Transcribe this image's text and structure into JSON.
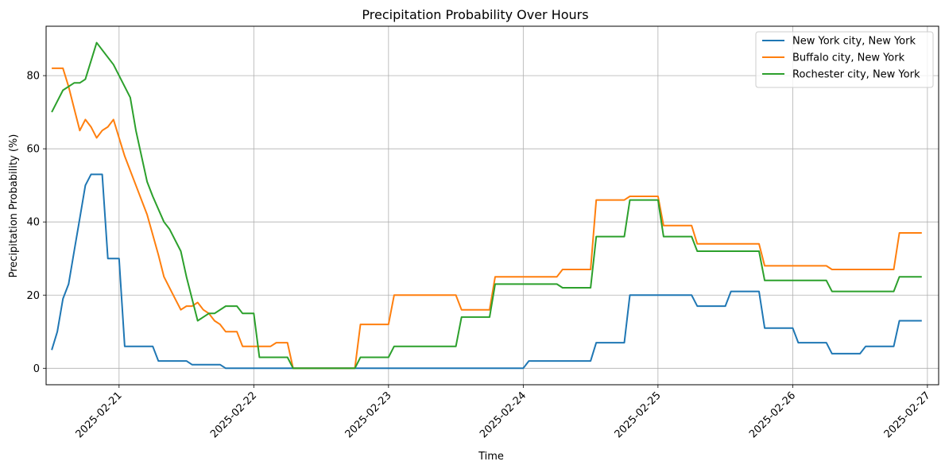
{
  "chart_data": {
    "type": "line",
    "title": "Precipitation Probability Over Hours",
    "xlabel": "Time",
    "ylabel": "Precipitation Probability (%)",
    "x_ticks": [
      "2025-02-21",
      "2025-02-22",
      "2025-02-23",
      "2025-02-24",
      "2025-02-25",
      "2025-02-26",
      "2025-02-27"
    ],
    "y_ticks": [
      0,
      20,
      40,
      60,
      80
    ],
    "xlim": [
      "2025-02-20T11:00",
      "2025-02-27T02:00"
    ],
    "ylim": [
      -4.5,
      93.5
    ],
    "grid": true,
    "legend_position": "top-right",
    "series": [
      {
        "name": "New York city, New York",
        "color": "#1f77b4",
        "points": [
          [
            "2025-02-20T12:00",
            5
          ],
          [
            "2025-02-20T13:00",
            10
          ],
          [
            "2025-02-20T14:00",
            19
          ],
          [
            "2025-02-20T15:00",
            23
          ],
          [
            "2025-02-20T16:00",
            32
          ],
          [
            "2025-02-20T17:00",
            41
          ],
          [
            "2025-02-20T18:00",
            50
          ],
          [
            "2025-02-20T19:00",
            53
          ],
          [
            "2025-02-20T21:00",
            53
          ],
          [
            "2025-02-20T22:00",
            30
          ],
          [
            "2025-02-21T00:00",
            30
          ],
          [
            "2025-02-21T01:00",
            6
          ],
          [
            "2025-02-21T06:00",
            6
          ],
          [
            "2025-02-21T07:00",
            2
          ],
          [
            "2025-02-21T12:00",
            2
          ],
          [
            "2025-02-21T13:00",
            1
          ],
          [
            "2025-02-21T18:00",
            1
          ],
          [
            "2025-02-21T19:00",
            0
          ],
          [
            "2025-02-24T00:00",
            0
          ],
          [
            "2025-02-24T01:00",
            2
          ],
          [
            "2025-02-24T12:00",
            2
          ],
          [
            "2025-02-24T13:00",
            7
          ],
          [
            "2025-02-24T18:00",
            7
          ],
          [
            "2025-02-24T19:00",
            20
          ],
          [
            "2025-02-25T06:00",
            20
          ],
          [
            "2025-02-25T07:00",
            17
          ],
          [
            "2025-02-25T12:00",
            17
          ],
          [
            "2025-02-25T13:00",
            21
          ],
          [
            "2025-02-25T18:00",
            21
          ],
          [
            "2025-02-25T19:00",
            11
          ],
          [
            "2025-02-26T00:00",
            11
          ],
          [
            "2025-02-26T01:00",
            7
          ],
          [
            "2025-02-26T06:00",
            7
          ],
          [
            "2025-02-26T07:00",
            4
          ],
          [
            "2025-02-26T12:00",
            4
          ],
          [
            "2025-02-26T13:00",
            6
          ],
          [
            "2025-02-26T18:00",
            6
          ],
          [
            "2025-02-26T19:00",
            13
          ],
          [
            "2025-02-26T23:00",
            13
          ]
        ]
      },
      {
        "name": "Buffalo city, New York",
        "color": "#ff7f0e",
        "points": [
          [
            "2025-02-20T12:00",
            82
          ],
          [
            "2025-02-20T14:00",
            82
          ],
          [
            "2025-02-20T15:00",
            77
          ],
          [
            "2025-02-20T16:00",
            71
          ],
          [
            "2025-02-20T17:00",
            65
          ],
          [
            "2025-02-20T18:00",
            68
          ],
          [
            "2025-02-20T19:00",
            66
          ],
          [
            "2025-02-20T20:00",
            63
          ],
          [
            "2025-02-20T21:00",
            65
          ],
          [
            "2025-02-20T22:00",
            66
          ],
          [
            "2025-02-20T23:00",
            68
          ],
          [
            "2025-02-21T00:00",
            63
          ],
          [
            "2025-02-21T01:00",
            58
          ],
          [
            "2025-02-21T03:00",
            50
          ],
          [
            "2025-02-21T05:00",
            42
          ],
          [
            "2025-02-21T07:00",
            31
          ],
          [
            "2025-02-21T08:00",
            25
          ],
          [
            "2025-02-21T10:00",
            19
          ],
          [
            "2025-02-21T11:00",
            16
          ],
          [
            "2025-02-21T12:00",
            17
          ],
          [
            "2025-02-21T13:00",
            17
          ],
          [
            "2025-02-21T14:00",
            18
          ],
          [
            "2025-02-21T15:00",
            16
          ],
          [
            "2025-02-21T16:00",
            15
          ],
          [
            "2025-02-21T17:00",
            13
          ],
          [
            "2025-02-21T18:00",
            12
          ],
          [
            "2025-02-21T19:00",
            10
          ],
          [
            "2025-02-21T21:00",
            10
          ],
          [
            "2025-02-21T22:00",
            6
          ],
          [
            "2025-02-22T03:00",
            6
          ],
          [
            "2025-02-22T04:00",
            7
          ],
          [
            "2025-02-22T06:00",
            7
          ],
          [
            "2025-02-22T07:00",
            0
          ],
          [
            "2025-02-22T18:00",
            0
          ],
          [
            "2025-02-22T19:00",
            12
          ],
          [
            "2025-02-23T00:00",
            12
          ],
          [
            "2025-02-23T01:00",
            20
          ],
          [
            "2025-02-23T12:00",
            20
          ],
          [
            "2025-02-23T13:00",
            16
          ],
          [
            "2025-02-23T18:00",
            16
          ],
          [
            "2025-02-23T19:00",
            25
          ],
          [
            "2025-02-24T06:00",
            25
          ],
          [
            "2025-02-24T07:00",
            27
          ],
          [
            "2025-02-24T12:00",
            27
          ],
          [
            "2025-02-24T13:00",
            46
          ],
          [
            "2025-02-24T18:00",
            46
          ],
          [
            "2025-02-24T19:00",
            47
          ],
          [
            "2025-02-25T00:00",
            47
          ],
          [
            "2025-02-25T01:00",
            39
          ],
          [
            "2025-02-25T06:00",
            39
          ],
          [
            "2025-02-25T07:00",
            34
          ],
          [
            "2025-02-25T18:00",
            34
          ],
          [
            "2025-02-25T19:00",
            28
          ],
          [
            "2025-02-26T06:00",
            28
          ],
          [
            "2025-02-26T07:00",
            27
          ],
          [
            "2025-02-26T18:00",
            27
          ],
          [
            "2025-02-26T19:00",
            37
          ],
          [
            "2025-02-26T23:00",
            37
          ]
        ]
      },
      {
        "name": "Rochester city, New York",
        "color": "#2ca02c",
        "points": [
          [
            "2025-02-20T12:00",
            70
          ],
          [
            "2025-02-20T14:00",
            76
          ],
          [
            "2025-02-20T16:00",
            78
          ],
          [
            "2025-02-20T17:00",
            78
          ],
          [
            "2025-02-20T18:00",
            79
          ],
          [
            "2025-02-20T20:00",
            89
          ],
          [
            "2025-02-20T23:00",
            83
          ],
          [
            "2025-02-21T02:00",
            74
          ],
          [
            "2025-02-21T03:00",
            65
          ],
          [
            "2025-02-21T05:00",
            51
          ],
          [
            "2025-02-21T06:00",
            47
          ],
          [
            "2025-02-21T08:00",
            40
          ],
          [
            "2025-02-21T09:00",
            38
          ],
          [
            "2025-02-21T11:00",
            32
          ],
          [
            "2025-02-21T12:00",
            25
          ],
          [
            "2025-02-21T14:00",
            13
          ],
          [
            "2025-02-21T16:00",
            15
          ],
          [
            "2025-02-21T17:00",
            15
          ],
          [
            "2025-02-21T19:00",
            17
          ],
          [
            "2025-02-21T21:00",
            17
          ],
          [
            "2025-02-21T22:00",
            15
          ],
          [
            "2025-02-22T00:00",
            15
          ],
          [
            "2025-02-22T01:00",
            3
          ],
          [
            "2025-02-22T06:00",
            3
          ],
          [
            "2025-02-22T07:00",
            0
          ],
          [
            "2025-02-22T18:00",
            0
          ],
          [
            "2025-02-22T19:00",
            3
          ],
          [
            "2025-02-23T00:00",
            3
          ],
          [
            "2025-02-23T01:00",
            6
          ],
          [
            "2025-02-23T12:00",
            6
          ],
          [
            "2025-02-23T13:00",
            14
          ],
          [
            "2025-02-23T18:00",
            14
          ],
          [
            "2025-02-23T19:00",
            23
          ],
          [
            "2025-02-24T06:00",
            23
          ],
          [
            "2025-02-24T07:00",
            22
          ],
          [
            "2025-02-24T12:00",
            22
          ],
          [
            "2025-02-24T13:00",
            36
          ],
          [
            "2025-02-24T18:00",
            36
          ],
          [
            "2025-02-24T19:00",
            46
          ],
          [
            "2025-02-25T00:00",
            46
          ],
          [
            "2025-02-25T01:00",
            36
          ],
          [
            "2025-02-25T06:00",
            36
          ],
          [
            "2025-02-25T07:00",
            32
          ],
          [
            "2025-02-25T18:00",
            32
          ],
          [
            "2025-02-25T19:00",
            24
          ],
          [
            "2025-02-26T06:00",
            24
          ],
          [
            "2025-02-26T07:00",
            21
          ],
          [
            "2025-02-26T18:00",
            21
          ],
          [
            "2025-02-26T19:00",
            25
          ],
          [
            "2025-02-26T23:00",
            25
          ]
        ]
      }
    ]
  }
}
